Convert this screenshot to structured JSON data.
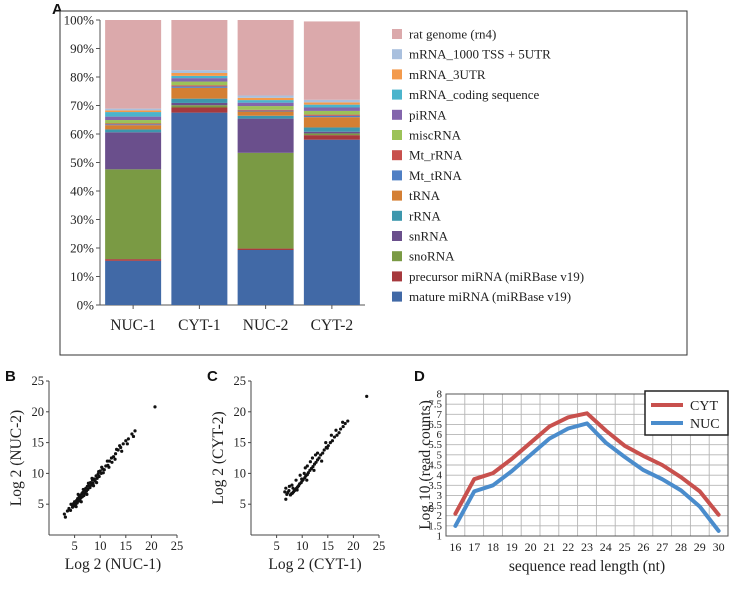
{
  "panels": {
    "A": {
      "letter": "A"
    },
    "B": {
      "letter": "B"
    },
    "C": {
      "letter": "C"
    },
    "D": {
      "letter": "D"
    }
  },
  "chart_data": [
    {
      "id": "A",
      "type": "bar",
      "stacked": true,
      "categories": [
        "NUC-1",
        "CYT-1",
        "NUC-2",
        "CYT-2"
      ],
      "ylim": [
        0,
        100
      ],
      "ytick_values": [
        0,
        10,
        20,
        30,
        40,
        50,
        60,
        70,
        80,
        90,
        100
      ],
      "ytick_labels": [
        "0%",
        "10%",
        "20%",
        "30%",
        "40%",
        "50%",
        "60%",
        "70%",
        "80%",
        "90%",
        "100%"
      ],
      "legend_position": "right",
      "series": [
        {
          "name": "mature miRNA (miRBase v19)",
          "color": "#4169a6",
          "values": [
            15.5,
            67.5,
            19.3,
            58.0
          ]
        },
        {
          "name": "precursor miRNA (miRBase v19)",
          "color": "#a6393d",
          "values": [
            0.6,
            1.8,
            0.5,
            1.6
          ]
        },
        {
          "name": "snoRNA",
          "color": "#7a9a44",
          "values": [
            31.5,
            0.8,
            33.6,
            0.6
          ]
        },
        {
          "name": "snRNA",
          "color": "#6a4f8c",
          "values": [
            13.0,
            0.8,
            12.0,
            0.6
          ]
        },
        {
          "name": "rRNA",
          "color": "#3d97ad",
          "values": [
            1.0,
            1.5,
            1.0,
            1.5
          ]
        },
        {
          "name": "tRNA",
          "color": "#d47f33",
          "values": [
            1.5,
            3.8,
            1.5,
            3.6
          ]
        },
        {
          "name": "Mt_tRNA",
          "color": "#4f7fc4",
          "values": [
            0.3,
            0.5,
            0.3,
            0.5
          ]
        },
        {
          "name": "Mt_rRNA",
          "color": "#c8504d",
          "values": [
            0.3,
            0.4,
            0.3,
            0.4
          ]
        },
        {
          "name": "miscRNA",
          "color": "#9cc258",
          "values": [
            1.2,
            1.3,
            1.3,
            1.3
          ]
        },
        {
          "name": "piRNA",
          "color": "#8365ac",
          "values": [
            1.2,
            1.2,
            1.2,
            1.2
          ]
        },
        {
          "name": "mRNA_coding sequence",
          "color": "#4bb4cc",
          "values": [
            1.6,
            0.8,
            0.9,
            1.0
          ]
        },
        {
          "name": "mRNA_3UTR",
          "color": "#f39a4c",
          "values": [
            0.6,
            1.0,
            0.8,
            0.8
          ]
        },
        {
          "name": "mRNA_1000 TSS + 5UTR",
          "color": "#a9c0de",
          "values": [
            0.6,
            1.0,
            0.8,
            0.9
          ]
        },
        {
          "name": "rat genome (rn4)",
          "color": "#dba9ab",
          "values": [
            31.1,
            17.6,
            26.5,
            27.5
          ]
        }
      ]
    },
    {
      "id": "B",
      "type": "scatter",
      "xlabel": "Log 2 (NUC-1)",
      "ylabel": "Log 2 (NUC-2)",
      "xlim": [
        0,
        25
      ],
      "ylim": [
        0,
        25
      ],
      "xticks": [
        5,
        10,
        15,
        20,
        25
      ],
      "yticks": [
        5,
        10,
        15,
        20,
        25
      ],
      "points": [
        [
          20.7,
          20.8
        ],
        [
          16.8,
          16.9
        ],
        [
          16.2,
          16.4
        ],
        [
          15.5,
          15.6
        ],
        [
          15.0,
          15.3
        ],
        [
          14.5,
          14.8
        ],
        [
          14.0,
          14.2
        ],
        [
          13.5,
          13.8
        ],
        [
          13.0,
          13.2
        ],
        [
          12.6,
          12.7
        ],
        [
          12.2,
          12.5
        ],
        [
          11.8,
          12.0
        ],
        [
          11.5,
          11.3
        ],
        [
          11.1,
          11.2
        ],
        [
          10.8,
          10.6
        ],
        [
          10.5,
          10.7
        ],
        [
          10.2,
          10.0
        ],
        [
          10.0,
          10.4
        ],
        [
          9.8,
          9.5
        ],
        [
          9.6,
          9.9
        ],
        [
          9.4,
          9.2
        ],
        [
          9.2,
          9.6
        ],
        [
          9.0,
          8.8
        ],
        [
          8.8,
          9.1
        ],
        [
          8.6,
          8.4
        ],
        [
          8.5,
          8.9
        ],
        [
          8.3,
          8.1
        ],
        [
          8.1,
          8.5
        ],
        [
          8.0,
          7.7
        ],
        [
          7.8,
          8.0
        ],
        [
          7.6,
          7.4
        ],
        [
          7.5,
          7.9
        ],
        [
          7.3,
          7.1
        ],
        [
          7.2,
          7.6
        ],
        [
          7.0,
          6.8
        ],
        [
          6.9,
          7.3
        ],
        [
          6.8,
          6.4
        ],
        [
          6.6,
          6.9
        ],
        [
          6.5,
          6.2
        ],
        [
          6.4,
          6.7
        ],
        [
          6.2,
          6.0
        ],
        [
          6.1,
          6.4
        ],
        [
          6.0,
          5.7
        ],
        [
          5.9,
          6.2
        ],
        [
          5.8,
          5.5
        ],
        [
          5.6,
          5.9
        ],
        [
          5.5,
          5.2
        ],
        [
          5.4,
          5.6
        ],
        [
          5.2,
          5.0
        ],
        [
          5.0,
          5.4
        ],
        [
          4.9,
          4.7
        ],
        [
          4.8,
          5.1
        ],
        [
          4.6,
          4.5
        ],
        [
          4.5,
          4.9
        ],
        [
          4.2,
          4.0
        ],
        [
          3.9,
          4.3
        ],
        [
          3.6,
          3.9
        ],
        [
          3.2,
          2.9
        ],
        [
          3.0,
          3.4
        ],
        [
          7.7,
          8.4
        ],
        [
          8.7,
          8.0
        ],
        [
          9.7,
          10.3
        ],
        [
          10.6,
          10.1
        ],
        [
          11.4,
          12.0
        ],
        [
          12.3,
          11.8
        ],
        [
          13.2,
          13.9
        ],
        [
          14.2,
          13.6
        ],
        [
          6.3,
          5.4
        ],
        [
          5.7,
          6.6
        ],
        [
          6.7,
          7.4
        ],
        [
          7.4,
          6.6
        ],
        [
          8.4,
          9.2
        ],
        [
          9.3,
          8.5
        ],
        [
          10.3,
          11.0
        ],
        [
          11.7,
          11.0
        ],
        [
          12.9,
          12.3
        ],
        [
          13.8,
          14.5
        ],
        [
          15.3,
          14.8
        ],
        [
          16.5,
          16.0
        ],
        [
          4.3,
          5.0
        ],
        [
          5.3,
          4.6
        ]
      ]
    },
    {
      "id": "C",
      "type": "scatter",
      "xlabel": "Log 2 (CYT-1)",
      "ylabel": "Log 2 (CYT-2)",
      "xlim": [
        0,
        25
      ],
      "ylim": [
        0,
        25
      ],
      "xticks": [
        5,
        10,
        15,
        20,
        25
      ],
      "yticks": [
        5,
        10,
        15,
        20,
        25
      ],
      "points": [
        [
          22.6,
          22.5
        ],
        [
          18.9,
          18.5
        ],
        [
          18.4,
          18.1
        ],
        [
          18.0,
          17.6
        ],
        [
          17.5,
          17.2
        ],
        [
          17.2,
          16.6
        ],
        [
          16.8,
          16.2
        ],
        [
          16.3,
          15.9
        ],
        [
          15.9,
          15.3
        ],
        [
          15.5,
          15.0
        ],
        [
          15.1,
          14.5
        ],
        [
          14.7,
          14.2
        ],
        [
          14.3,
          13.8
        ],
        [
          14.0,
          13.3
        ],
        [
          13.6,
          13.0
        ],
        [
          13.3,
          12.5
        ],
        [
          13.0,
          12.2
        ],
        [
          12.7,
          11.8
        ],
        [
          12.4,
          11.5
        ],
        [
          12.1,
          11.1
        ],
        [
          11.8,
          10.8
        ],
        [
          11.5,
          10.5
        ],
        [
          11.2,
          10.1
        ],
        [
          11.0,
          9.8
        ],
        [
          10.7,
          9.6
        ],
        [
          10.5,
          9.3
        ],
        [
          10.2,
          9.0
        ],
        [
          10.0,
          8.8
        ],
        [
          9.8,
          8.5
        ],
        [
          9.5,
          8.3
        ],
        [
          9.3,
          8.0
        ],
        [
          9.1,
          7.8
        ],
        [
          8.9,
          7.6
        ],
        [
          8.7,
          7.4
        ],
        [
          8.5,
          7.2
        ],
        [
          8.3,
          7.0
        ],
        [
          8.1,
          6.8
        ],
        [
          7.9,
          6.7
        ],
        [
          7.7,
          6.5
        ],
        [
          7.4,
          7.2
        ],
        [
          7.2,
          6.9
        ],
        [
          7.0,
          6.6
        ],
        [
          6.8,
          7.6
        ],
        [
          6.6,
          7.0
        ],
        [
          6.8,
          5.8
        ],
        [
          10.4,
          10.0
        ],
        [
          11.0,
          11.2
        ],
        [
          12.0,
          12.5
        ],
        [
          13.0,
          13.3
        ],
        [
          9.6,
          9.7
        ],
        [
          8.8,
          8.9
        ],
        [
          8.0,
          8.1
        ],
        [
          14.6,
          15.0
        ],
        [
          15.7,
          16.2
        ],
        [
          16.6,
          17.0
        ],
        [
          17.9,
          18.3
        ],
        [
          10.9,
          8.9
        ],
        [
          12.3,
          10.5
        ],
        [
          9.0,
          7.3
        ],
        [
          13.8,
          12.0
        ],
        [
          7.5,
          7.9
        ],
        [
          8.2,
          7.6
        ],
        [
          11.6,
          11.9
        ],
        [
          12.6,
          13.0
        ],
        [
          9.9,
          9.1
        ],
        [
          10.6,
          10.9
        ],
        [
          14.9,
          14.1
        ]
      ]
    },
    {
      "id": "D",
      "type": "line",
      "xlabel": "sequence read length (nt)",
      "ylabel": "Log 10 (read counts)",
      "x": [
        16,
        17,
        18,
        19,
        20,
        21,
        22,
        23,
        24,
        25,
        26,
        27,
        28,
        29,
        30
      ],
      "ylim": [
        1,
        8
      ],
      "yticks": [
        1,
        1.5,
        2,
        2.5,
        3,
        3.5,
        4,
        4.5,
        5,
        5.5,
        6,
        6.5,
        7,
        7.5,
        8
      ],
      "legend_position": "top-right",
      "series": [
        {
          "name": "CYT",
          "color": "#c8504d",
          "values": [
            2.1,
            3.8,
            4.1,
            4.8,
            5.6,
            6.4,
            6.85,
            7.05,
            6.2,
            5.45,
            4.95,
            4.5,
            3.9,
            3.2,
            2.05
          ]
        },
        {
          "name": "NUC",
          "color": "#4a8ccc",
          "values": [
            1.5,
            3.2,
            3.5,
            4.2,
            5.0,
            5.8,
            6.3,
            6.55,
            5.6,
            4.9,
            4.25,
            3.8,
            3.25,
            2.45,
            1.25
          ]
        }
      ]
    }
  ]
}
